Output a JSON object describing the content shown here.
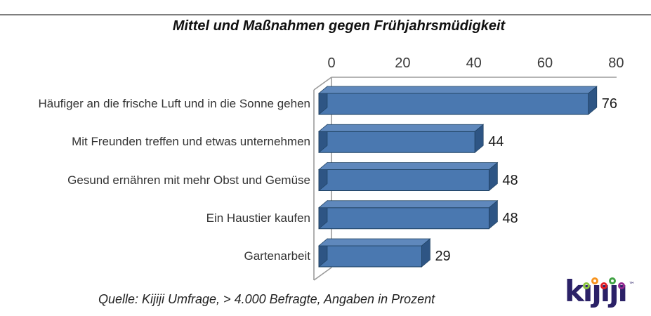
{
  "page": {
    "background": "#ffffff",
    "top_rule_color": "#7f7f7f"
  },
  "chart_data": {
    "type": "bar",
    "orientation": "horizontal",
    "style": "3d",
    "title": "Mittel und Maßnahmen gegen Frühjahrsmüdigkeit",
    "categories": [
      "Häufiger an die frische Luft und in die Sonne gehen",
      "Mit Freunden treffen und etwas unternehmen",
      "Gesund ernähren mit mehr Obst und Gemüse",
      "Ein Haustier kaufen",
      "Gartenarbeit"
    ],
    "values": [
      76,
      44,
      48,
      48,
      29
    ],
    "value_axis": "top",
    "axis_ticks": [
      0,
      20,
      40,
      60,
      80
    ],
    "xlim": [
      0,
      80
    ],
    "grid": false,
    "legend": "none",
    "unit": "Prozent",
    "source_note": "Quelle: Kijiji Umfrage, > 4.000 Befragte, Angaben in Prozent",
    "colors": {
      "bar_front": "#4a78b0",
      "bar_top": "#5f88bc",
      "bar_side": "#2e5584",
      "bar_outline": "#1e4060",
      "wall_line": "#9b9b9b"
    }
  },
  "logo": {
    "text": "kijiji",
    "render_text": "kıȷıȷı",
    "trademark": "™",
    "text_color": "#2b2167",
    "dot_colors": [
      "#8dc63f",
      "#f7941e",
      "#e31e24",
      "#3fa142",
      "#93268f"
    ]
  }
}
